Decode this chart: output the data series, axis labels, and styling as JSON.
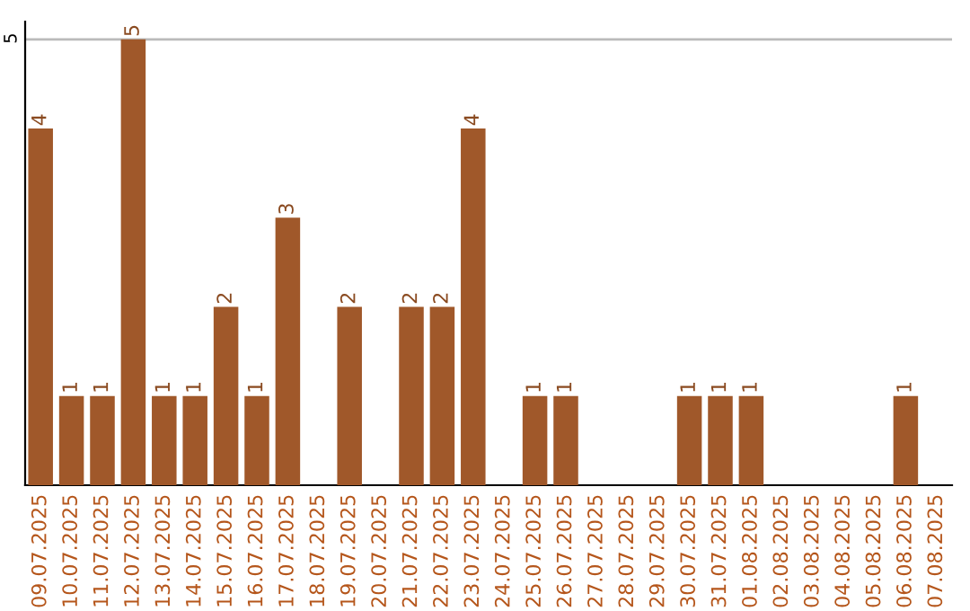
{
  "chart_data": {
    "type": "bar",
    "categories": [
      "09.07.2025",
      "10.07.2025",
      "11.07.2025",
      "12.07.2025",
      "13.07.2025",
      "14.07.2025",
      "15.07.2025",
      "16.07.2025",
      "17.07.2025",
      "18.07.2025",
      "19.07.2025",
      "20.07.2025",
      "21.07.2025",
      "22.07.2025",
      "23.07.2025",
      "24.07.2025",
      "25.07.2025",
      "26.07.2025",
      "27.07.2025",
      "28.07.2025",
      "29.07.2025",
      "30.07.2025",
      "31.07.2025",
      "01.08.2025",
      "02.08.2025",
      "03.08.2025",
      "04.08.2025",
      "05.08.2025",
      "06.08.2025",
      "07.08.2025"
    ],
    "values": [
      4,
      1,
      1,
      5,
      1,
      1,
      2,
      1,
      3,
      0,
      2,
      0,
      2,
      2,
      4,
      0,
      1,
      1,
      0,
      0,
      0,
      1,
      1,
      1,
      0,
      0,
      0,
      0,
      1,
      0
    ],
    "value_labels": [
      "4",
      "1",
      "1",
      "5",
      "1",
      "1",
      "2",
      "1",
      "3",
      null,
      "2",
      null,
      "2",
      "2",
      "4",
      null,
      "1",
      "1",
      null,
      null,
      null,
      "1",
      "1",
      "1",
      null,
      null,
      null,
      null,
      "1",
      null
    ],
    "color": "#a0582a",
    "ylim": [
      0,
      5.2
    ],
    "yticks": [
      5
    ],
    "grid": "y"
  }
}
